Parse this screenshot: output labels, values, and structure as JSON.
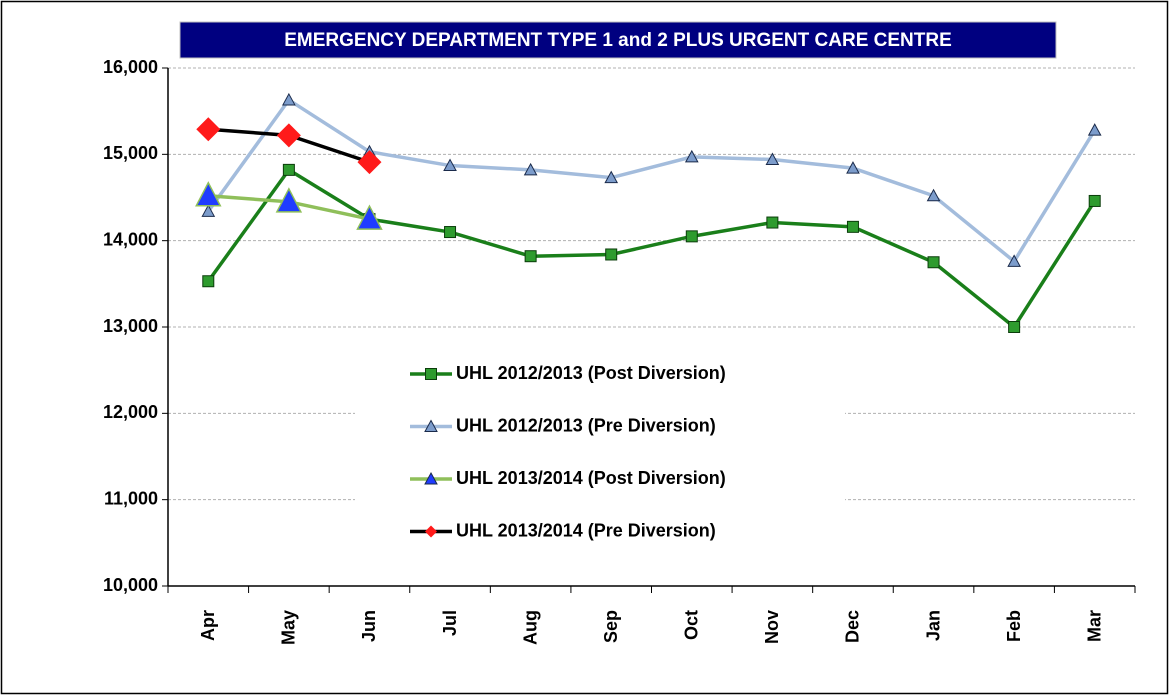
{
  "chart_data": {
    "type": "line",
    "title": "EMERGENCY DEPARTMENT TYPE 1 and 2 PLUS URGENT CARE CENTRE",
    "categories": [
      "Apr",
      "May",
      "Jun",
      "Jul",
      "Aug",
      "Sep",
      "Oct",
      "Nov",
      "Dec",
      "Jan",
      "Feb",
      "Mar"
    ],
    "series": [
      {
        "name": "UHL 2012/2013 (Post Diversion)",
        "color": "#1a7f1a",
        "marker": "square",
        "marker_color": "#2e9b2e",
        "values": [
          13530,
          14820,
          14250,
          14100,
          13820,
          13840,
          14050,
          14210,
          14160,
          13750,
          13000,
          14460
        ]
      },
      {
        "name": "UHL 2012/2013 (Pre Diversion)",
        "color": "#a3bcdc",
        "marker": "triangle",
        "marker_color": "#7c9ccb",
        "values": [
          14340,
          15630,
          15030,
          14870,
          14820,
          14730,
          14970,
          14940,
          14840,
          14520,
          13760,
          15280
        ]
      },
      {
        "name": "UHL 2013/2014 (Post Diversion)",
        "color": "#8fbf5a",
        "marker": "big-triangle",
        "marker_color": "#1f3cff",
        "values": [
          14520,
          14450,
          14250,
          null,
          null,
          null,
          null,
          null,
          null,
          null,
          null,
          null
        ]
      },
      {
        "name": "UHL 2013/2014 (Pre Diversion)",
        "color": "#000000",
        "marker": "diamond",
        "marker_color": "#ff1a1a",
        "values": [
          15290,
          15220,
          14910,
          null,
          null,
          null,
          null,
          null,
          null,
          null,
          null,
          null
        ]
      }
    ],
    "ylim": [
      10000,
      16000
    ],
    "yticks": [
      {
        "value": 10000,
        "label": "10,000"
      },
      {
        "value": 11000,
        "label": "11,000"
      },
      {
        "value": 12000,
        "label": "12,000"
      },
      {
        "value": 13000,
        "label": "13,000"
      },
      {
        "value": 14000,
        "label": "14,000"
      },
      {
        "value": 15000,
        "label": "15,000"
      },
      {
        "value": 16000,
        "label": "16,000"
      }
    ],
    "grid": true,
    "legend": "center"
  }
}
